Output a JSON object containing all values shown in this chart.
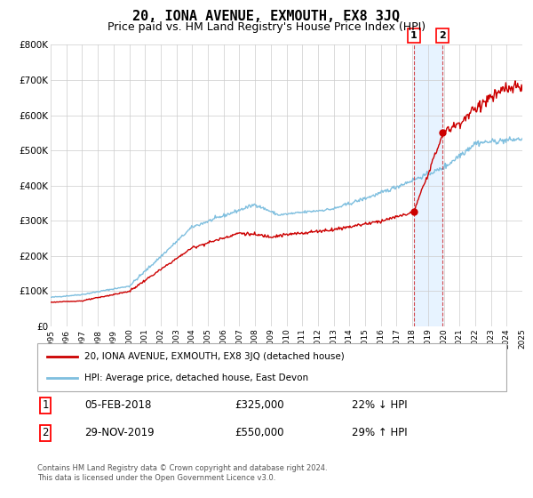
{
  "title": "20, IONA AVENUE, EXMOUTH, EX8 3JQ",
  "subtitle": "Price paid vs. HM Land Registry's House Price Index (HPI)",
  "title_fontsize": 11,
  "subtitle_fontsize": 9,
  "legend_line1": "20, IONA AVENUE, EXMOUTH, EX8 3JQ (detached house)",
  "legend_line2": "HPI: Average price, detached house, East Devon",
  "sale1_date": "05-FEB-2018",
  "sale1_price": "£325,000",
  "sale1_hpi": "22% ↓ HPI",
  "sale1_year": 2018.1,
  "sale1_value": 325000,
  "sale2_date": "29-NOV-2019",
  "sale2_price": "£550,000",
  "sale2_hpi": "29% ↑ HPI",
  "sale2_year": 2019.92,
  "sale2_value": 550000,
  "footer": "Contains HM Land Registry data © Crown copyright and database right 2024.\nThis data is licensed under the Open Government Licence v3.0.",
  "hpi_color": "#7fbfdf",
  "price_color": "#cc0000",
  "marker_color": "#cc0000",
  "shade_color": "#ddeeff",
  "grid_color": "#cccccc",
  "background_color": "#ffffff",
  "ylim": [
    0,
    800000
  ],
  "yticks": [
    0,
    100000,
    200000,
    300000,
    400000,
    500000,
    600000,
    700000,
    800000
  ],
  "ylabel_strs": [
    "£0",
    "£100K",
    "£200K",
    "£300K",
    "£400K",
    "£500K",
    "£600K",
    "£700K",
    "£800K"
  ]
}
